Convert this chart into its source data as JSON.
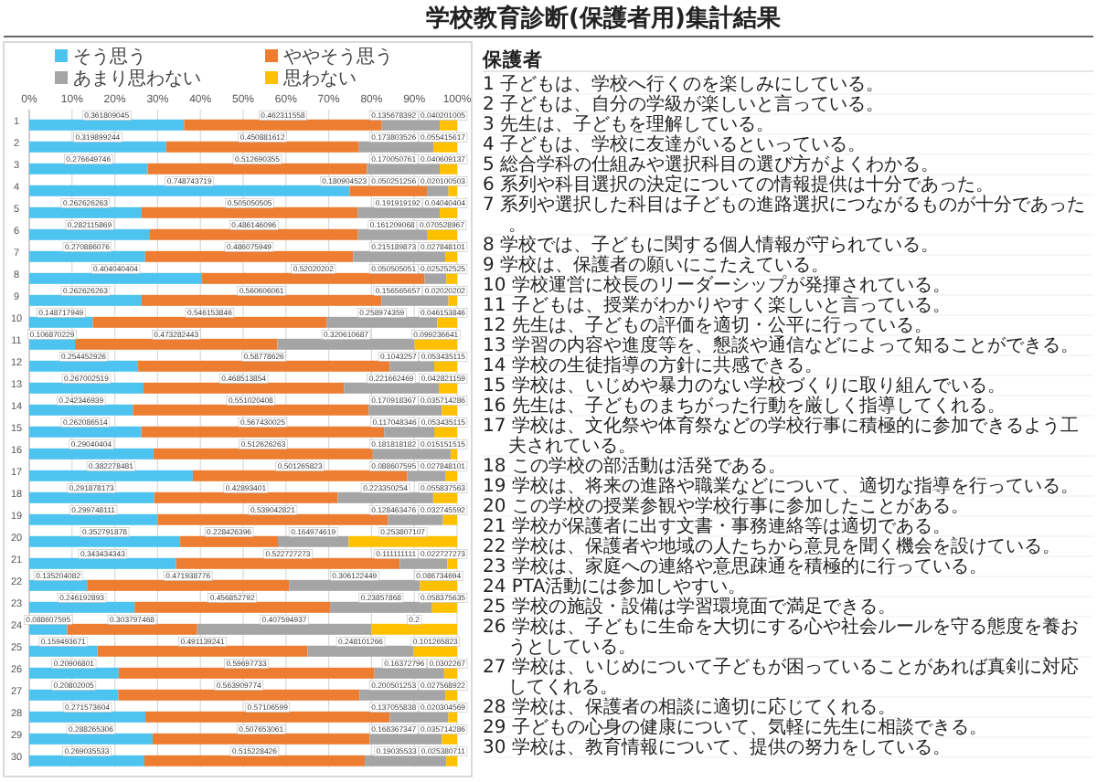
{
  "chart_data": {
    "type": "bar",
    "orientation": "horizontal",
    "stacked": true,
    "title": "学校教育診断(保護者用)集計結果",
    "categories": [
      "1",
      "2",
      "3",
      "4",
      "5",
      "6",
      "7",
      "8",
      "9",
      "10",
      "11",
      "12",
      "13",
      "14",
      "15",
      "16",
      "17",
      "18",
      "19",
      "20",
      "21",
      "22",
      "23",
      "24",
      "25",
      "26",
      "27",
      "28",
      "29",
      "30"
    ],
    "series": [
      {
        "name": "そう思う",
        "color": "#4dc3f0",
        "values": [
          0.361809045,
          0.319899244,
          0.276649746,
          0.748743719,
          0.262626263,
          0.282115869,
          0.270886076,
          0.404040404,
          0.262626263,
          0.148717949,
          0.106870229,
          0.254452926,
          0.267002519,
          0.242346939,
          0.262086514,
          0.29040404,
          0.382278481,
          0.291878173,
          0.299748111,
          0.352791878,
          0.343434343,
          0.135204082,
          0.246192893,
          0.088607595,
          0.159493671,
          0.20906801,
          0.20802005,
          0.271573604,
          0.288265306,
          0.269035533
        ]
      },
      {
        "name": "ややそう思う",
        "color": "#ed7d31",
        "values": [
          0.462311558,
          0.450881612,
          0.512690355,
          0.180904523,
          0.505050505,
          0.486146096,
          0.486075949,
          0.52020202,
          0.560606061,
          0.546153846,
          0.473282443,
          0.58778626,
          0.468513854,
          0.551020408,
          0.567430025,
          0.512626263,
          0.501265823,
          0.42893401,
          0.539042821,
          0.228426396,
          0.522727273,
          0.471938776,
          0.456852792,
          0.303797468,
          0.491139241,
          0.59697733,
          0.563909774,
          0.57106599,
          0.507653061,
          0.515228426
        ]
      },
      {
        "name": "あまり思わない",
        "color": "#a5a5a5",
        "values": [
          0.135678392,
          0.173803526,
          0.170050761,
          0.050251256,
          0.191919192,
          0.161209068,
          0.215189873,
          0.050505051,
          0.156565657,
          0.258974359,
          0.320610687,
          0.1043257,
          0.221662469,
          0.170918367,
          0.117048346,
          0.181818182,
          0.088607595,
          0.223350254,
          0.128463476,
          0.164974619,
          0.111111111,
          0.306122449,
          0.23857868,
          0.407594937,
          0.248101266,
          0.16372796,
          0.200501253,
          0.137055838,
          0.168367347,
          0.19035533
        ]
      },
      {
        "name": "思わない",
        "color": "#ffc000",
        "values": [
          0.040201005,
          0.055415617,
          0.040609137,
          0.020100503,
          0.04040404,
          0.070528967,
          0.027848101,
          0.025252525,
          0.02020202,
          0.046153846,
          0.099236641,
          0.053435115,
          0.042821159,
          0.035714286,
          0.053435115,
          0.015151515,
          0.027848101,
          0.055837563,
          0.032745592,
          0.253807107,
          0.022727273,
          0.086734694,
          0.058375635,
          0.2,
          0.101265823,
          0.0302267,
          0.027568922,
          0.020304569,
          0.035714286,
          0.025380711
        ]
      }
    ],
    "xlim": [
      0,
      1.000000001
    ],
    "xticks": [
      {
        "value": 0,
        "label": "0%"
      },
      {
        "value": 0.1,
        "label": "10%"
      },
      {
        "value": 0.2,
        "label": "20%"
      },
      {
        "value": 0.3,
        "label": "30%"
      },
      {
        "value": 0.4,
        "label": "40%"
      },
      {
        "value": 0.5,
        "label": "50%"
      },
      {
        "value": 0.6,
        "label": "60%"
      },
      {
        "value": 0.7,
        "label": "70%"
      },
      {
        "value": 0.8,
        "label": "80%"
      },
      {
        "value": 0.9,
        "label": "90%"
      },
      {
        "value": 1,
        "label": "100%"
      }
    ],
    "grid": "x",
    "legend": "top",
    "data_labels": true,
    "annotations": [
      "保護者",
      "1 子どもは、学校へ行くのを楽しみにしている。",
      "2 子どもは、自分の学級が楽しいと言っている。",
      "3 先生は、子どもを理解している。",
      "4 子どもは、学校に友達がいるといっている。",
      "5 総合学科の仕組みや選択科目の選び方がよくわかる。",
      "6 系列や科目選択の決定についての情報提供は十分であった。",
      "7 系列や選択した科目は子どもの進路選択につながるものが十分であった。",
      "8 学校では、子どもに関する個人情報が守られている。",
      "9 学校は、保護者の願いにこたえている。",
      "10 学校運営に校長のリーダーシップが発揮されている。",
      "11 子どもは、授業がわかりやすく楽しいと言っている。",
      "12 先生は、子どもの評価を適切・公平に行っている。",
      "13 学習の内容や進度等を、懇談や通信などによって知ることができる。",
      "14 学校の生徒指導の方針に共感できる。",
      "15 学校は、いじめや暴力のない学校づくりに取り組んでいる。",
      "16 先生は、子どものまちがった行動を厳しく指導してくれる。",
      "17 学校は、文化祭や体育祭などの学校行事に積極的に参加できるよう工夫されている。",
      "18 この学校の部活動は活発である。",
      "19 学校は、将来の進路や職業などについて、適切な指導を行っている。",
      "20 この学校の授業参観や学校行事に参加したことがある。",
      "21 学校が保護者に出す文書・事務連絡等は適切である。",
      "22 学校は、保護者や地域の人たちから意見を聞く機会を設けている。",
      "23 学校は、家庭への連絡や意思疎通を積極的に行っている。",
      "24 PTA活動には参加しやすい。",
      "25 学校の施設・設備は学習環境面で満足できる。",
      "26 学校は、子どもに生命を大切にする心や社会ルールを守る態度を養おうとしている。",
      "27 学校は、いじめについて子どもが困っていることがあれば真剣に対応してくれる。",
      "28 学校は、保護者の相談に適切に応じてくれる。",
      "29 子どもの心身の健康について、気軽に先生に相談できる。",
      "30 学校は、教育情報について、提供の努力をしている。"
    ]
  }
}
